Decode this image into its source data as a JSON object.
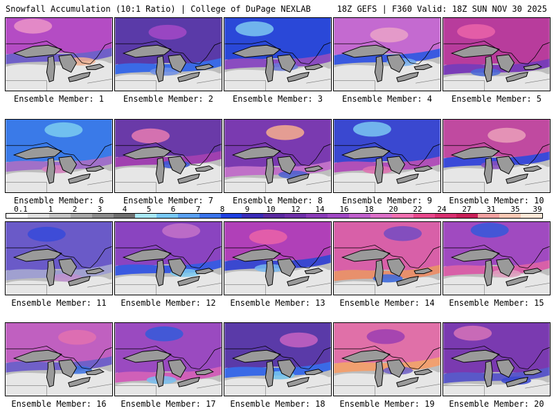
{
  "header": {
    "title": "Snowfall Accumulation (10:1 Ratio) | College of DuPage NEXLAB",
    "run_info": "18Z GEFS | F360 Valid: 18Z SUN NOV 30 2025"
  },
  "members": [
    {
      "label": "Ensemble Member: 1"
    },
    {
      "label": "Ensemble Member: 2"
    },
    {
      "label": "Ensemble Member: 3"
    },
    {
      "label": "Ensemble Member: 4"
    },
    {
      "label": "Ensemble Member: 5"
    },
    {
      "label": "Ensemble Member: 6"
    },
    {
      "label": "Ensemble Member: 7"
    },
    {
      "label": "Ensemble Member: 8"
    },
    {
      "label": "Ensemble Member: 9"
    },
    {
      "label": "Ensemble Member: 10"
    },
    {
      "label": "Ensemble Member: 11"
    },
    {
      "label": "Ensemble Member: 12"
    },
    {
      "label": "Ensemble Member: 13"
    },
    {
      "label": "Ensemble Member: 14"
    },
    {
      "label": "Ensemble Member: 15"
    },
    {
      "label": "Ensemble Member: 16"
    },
    {
      "label": "Ensemble Member: 17"
    },
    {
      "label": "Ensemble Member: 18"
    },
    {
      "label": "Ensemble Member: 19"
    },
    {
      "label": "Ensemble Member: 20"
    }
  ],
  "colorbar": {
    "labels": [
      "0.1",
      "1",
      "2",
      "3",
      "4",
      "5",
      "6",
      "7",
      "8",
      "9",
      "10",
      "12",
      "14",
      "16",
      "18",
      "20",
      "22",
      "24",
      "27",
      "31",
      "35",
      "39"
    ],
    "colors": [
      "#ffffff",
      "#e0e0e0",
      "#c4c4c4",
      "#a8a8a8",
      "#8c8c8c",
      "#6f6f6f",
      "#a8e8f4",
      "#78c8f4",
      "#5aa0f0",
      "#3a74ea",
      "#1e40e0",
      "#3a2cb8",
      "#5a2aa0",
      "#6e30a8",
      "#8a3cb8",
      "#a048c4",
      "#c060cc",
      "#dc70c8",
      "#f070b0",
      "#e8488c",
      "#d83070",
      "#c82058",
      "#f0a0a0",
      "#f8c8b4",
      "#fde8d8"
    ]
  }
}
